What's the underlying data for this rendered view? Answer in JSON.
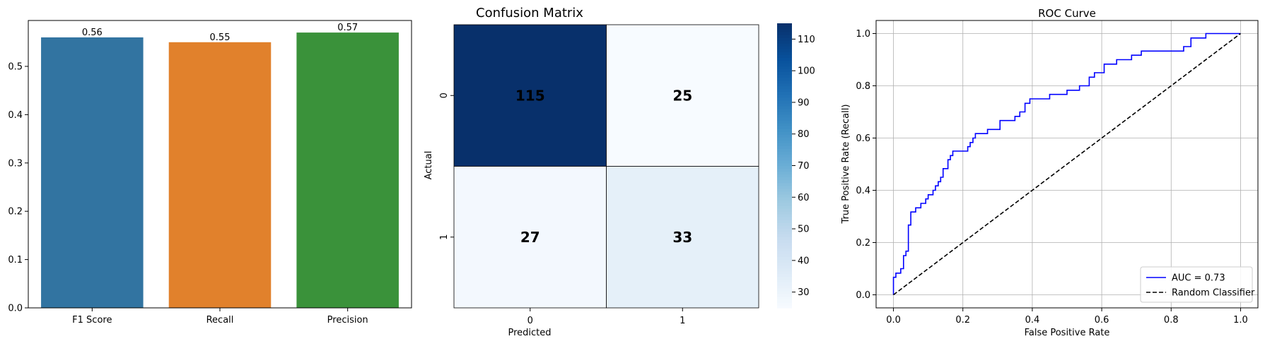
{
  "chart_data": [
    {
      "type": "bar",
      "title": "",
      "categories": [
        "F1 Score",
        "Recall",
        "Precision"
      ],
      "values": [
        0.56,
        0.55,
        0.57
      ],
      "value_labels": [
        "0.56",
        "0.55",
        "0.57"
      ],
      "colors": [
        "#3274a1",
        "#e1812c",
        "#3a923a"
      ],
      "ylim": [
        0,
        0.595
      ],
      "yticks": [
        0.0,
        0.1,
        0.2,
        0.3,
        0.4,
        0.5
      ],
      "ytick_labels": [
        "0.0",
        "0.1",
        "0.2",
        "0.3",
        "0.4",
        "0.5"
      ],
      "grid": false
    },
    {
      "type": "heatmap",
      "title": "Confusion Matrix",
      "xlabel": "Predicted",
      "ylabel": "Actual",
      "x_categories": [
        "0",
        "1"
      ],
      "y_categories": [
        "0",
        "1"
      ],
      "values": [
        [
          115,
          25
        ],
        [
          27,
          33
        ]
      ],
      "value_labels": [
        [
          "115",
          "25"
        ],
        [
          "27",
          "33"
        ]
      ],
      "colormap": "Blues",
      "vmin": 25,
      "vmax": 115,
      "colorbar_ticks": [
        30,
        40,
        50,
        60,
        70,
        80,
        90,
        100,
        110
      ],
      "colorbar_tick_labels": [
        "30",
        "40",
        "50",
        "60",
        "70",
        "80",
        "90",
        "100",
        "110"
      ]
    },
    {
      "type": "line",
      "title": "ROC Curve",
      "xlabel": "False Positive Rate",
      "ylabel": "True Positive Rate (Recall)",
      "xlim": [
        -0.05,
        1.05
      ],
      "ylim": [
        -0.05,
        1.05
      ],
      "xticks": [
        0.0,
        0.2,
        0.4,
        0.6,
        0.8,
        1.0
      ],
      "xtick_labels": [
        "0.0",
        "0.2",
        "0.4",
        "0.6",
        "0.8",
        "1.0"
      ],
      "yticks": [
        0.0,
        0.2,
        0.4,
        0.6,
        0.8,
        1.0
      ],
      "ytick_labels": [
        "0.0",
        "0.2",
        "0.4",
        "0.6",
        "0.8",
        "1.0"
      ],
      "grid": true,
      "legend_position": "lower-right",
      "series": [
        {
          "name": "AUC = 0.73",
          "color": "#0000ff",
          "style": "solid",
          "x": [
            0.0,
            0.0,
            0.007,
            0.007,
            0.021,
            0.021,
            0.029,
            0.029,
            0.036,
            0.036,
            0.043,
            0.043,
            0.05,
            0.05,
            0.064,
            0.064,
            0.079,
            0.079,
            0.093,
            0.093,
            0.1,
            0.1,
            0.114,
            0.114,
            0.121,
            0.121,
            0.129,
            0.129,
            0.136,
            0.136,
            0.143,
            0.143,
            0.157,
            0.157,
            0.164,
            0.164,
            0.171,
            0.171,
            0.179,
            0.179,
            0.214,
            0.214,
            0.221,
            0.221,
            0.229,
            0.229,
            0.236,
            0.236,
            0.271,
            0.271,
            0.307,
            0.307,
            0.35,
            0.35,
            0.364,
            0.364,
            0.379,
            0.379,
            0.393,
            0.393,
            0.45,
            0.45,
            0.5,
            0.5,
            0.536,
            0.536,
            0.564,
            0.564,
            0.579,
            0.579,
            0.607,
            0.607,
            0.643,
            0.643,
            0.686,
            0.686,
            0.714,
            0.714,
            0.836,
            0.836,
            0.857,
            0.857,
            0.9,
            0.9,
            1.0
          ],
          "y": [
            0.0,
            0.067,
            0.067,
            0.083,
            0.083,
            0.1,
            0.1,
            0.15,
            0.15,
            0.167,
            0.167,
            0.267,
            0.267,
            0.317,
            0.317,
            0.333,
            0.333,
            0.35,
            0.35,
            0.367,
            0.367,
            0.383,
            0.383,
            0.4,
            0.4,
            0.417,
            0.417,
            0.433,
            0.433,
            0.45,
            0.45,
            0.483,
            0.483,
            0.517,
            0.517,
            0.533,
            0.533,
            0.55,
            0.55,
            0.55,
            0.55,
            0.567,
            0.567,
            0.583,
            0.583,
            0.6,
            0.6,
            0.617,
            0.617,
            0.633,
            0.633,
            0.667,
            0.667,
            0.683,
            0.683,
            0.7,
            0.7,
            0.733,
            0.733,
            0.75,
            0.75,
            0.767,
            0.767,
            0.783,
            0.783,
            0.8,
            0.8,
            0.833,
            0.833,
            0.85,
            0.85,
            0.883,
            0.883,
            0.9,
            0.9,
            0.917,
            0.917,
            0.933,
            0.933,
            0.95,
            0.95,
            0.983,
            0.983,
            1.0,
            1.0
          ]
        },
        {
          "name": "Random Classifier",
          "color": "#000000",
          "style": "dashed",
          "x": [
            0.0,
            1.0
          ],
          "y": [
            0.0,
            1.0
          ]
        }
      ]
    }
  ]
}
